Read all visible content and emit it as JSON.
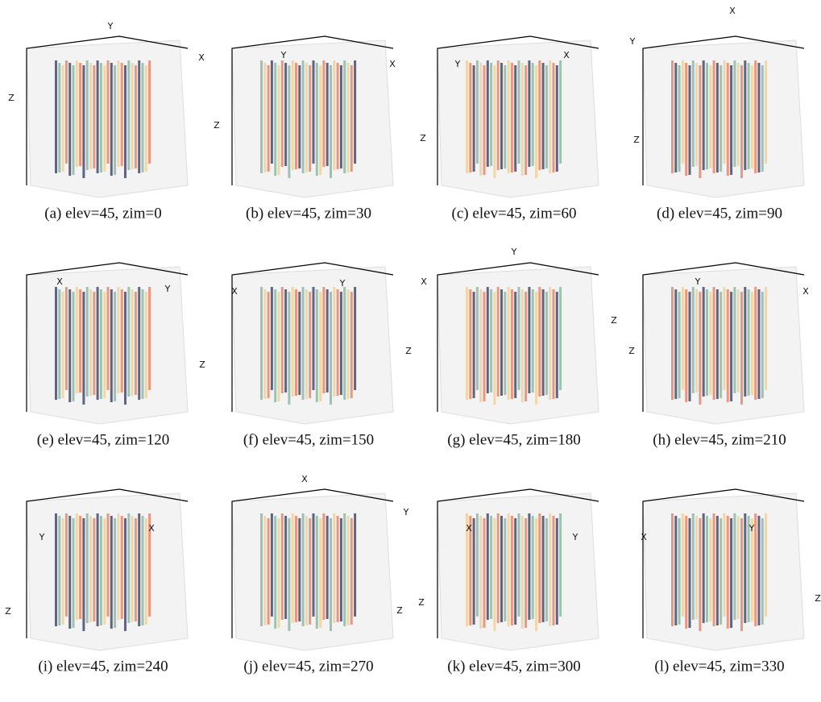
{
  "panels": [
    {
      "caption": "(a) elev=45, zim=0",
      "axes": [
        "Y",
        "X",
        "Z"
      ]
    },
    {
      "caption": "(b) elev=45, zim=30",
      "axes": [
        "Y",
        "X",
        "Z"
      ]
    },
    {
      "caption": "(c) elev=45, zim=60",
      "axes": [
        "Y",
        "X",
        "Z"
      ]
    },
    {
      "caption": "(d) elev=45, zim=90",
      "axes": [
        "X",
        "Y",
        "Z"
      ]
    },
    {
      "caption": "(e) elev=45, zim=120",
      "axes": [
        "X",
        "Y",
        "Z"
      ]
    },
    {
      "caption": "(f) elev=45, zim=150",
      "axes": [
        "X",
        "Y",
        "Z"
      ]
    },
    {
      "caption": "(g) elev=45, zim=180",
      "axes": [
        "Y",
        "X",
        "Z"
      ]
    },
    {
      "caption": "(h) elev=45, zim=210",
      "axes": [
        "Y",
        "X",
        "Z"
      ]
    },
    {
      "caption": "(i) elev=45, zim=240",
      "axes": [
        "Y",
        "X",
        "Z"
      ]
    },
    {
      "caption": "(j) elev=45, zim=270",
      "axes": [
        "X",
        "Y",
        "Z"
      ]
    },
    {
      "caption": "(k) elev=45, zim=300",
      "axes": [
        "X",
        "Y",
        "Z"
      ]
    },
    {
      "caption": "(l) elev=45, zim=330",
      "axes": [
        "X",
        "Y",
        "Z"
      ]
    }
  ]
}
